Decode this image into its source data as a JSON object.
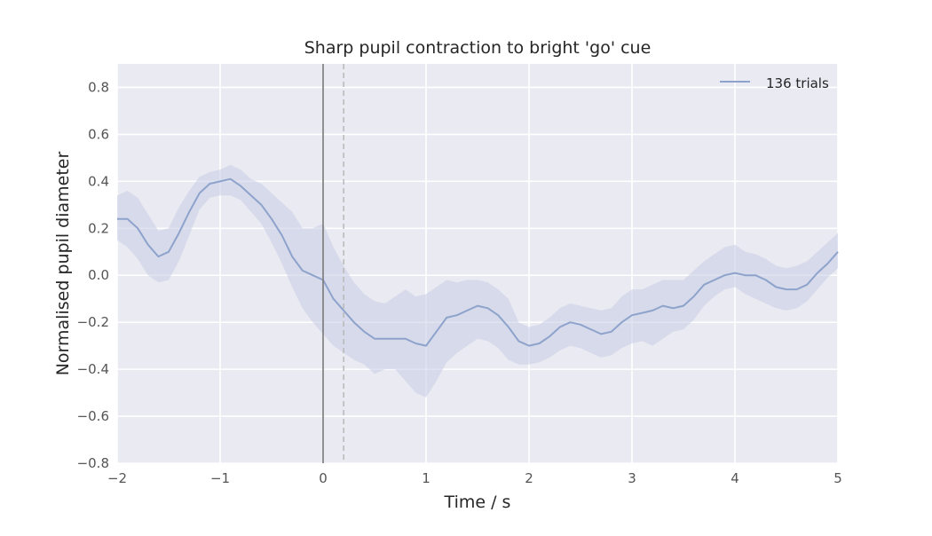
{
  "chart_data": {
    "type": "line",
    "title": "Sharp pupil contraction to bright 'go' cue",
    "xlabel": "Time / s",
    "ylabel": "Normalised pupil diameter",
    "xlim": [
      -2,
      5
    ],
    "ylim": [
      -0.8,
      0.9
    ],
    "xticks": [
      -2,
      -1,
      0,
      1,
      2,
      3,
      4,
      5
    ],
    "yticks": [
      -0.8,
      -0.6,
      -0.4,
      -0.2,
      0.0,
      0.2,
      0.4,
      0.6,
      0.8
    ],
    "xtick_labels": [
      "−2",
      "−1",
      "0",
      "1",
      "2",
      "3",
      "4",
      "5"
    ],
    "ytick_labels": [
      "−0.8",
      "−0.6",
      "−0.4",
      "−0.2",
      "0.0",
      "0.2",
      "0.4",
      "0.6",
      "0.8"
    ],
    "grid": true,
    "legend_position": "top-right",
    "vlines": [
      {
        "x": 0.0,
        "style": "solid",
        "color": "#777777"
      },
      {
        "x": 0.2,
        "style": "dashed",
        "color": "#bbbbbb"
      }
    ],
    "series": [
      {
        "name": "136 trials",
        "color": "#8ea3cc",
        "band_color": "#c6cce4",
        "x": [
          -2.0,
          -1.9,
          -1.8,
          -1.7,
          -1.6,
          -1.5,
          -1.4,
          -1.3,
          -1.2,
          -1.1,
          -1.0,
          -0.9,
          -0.8,
          -0.7,
          -0.6,
          -0.5,
          -0.4,
          -0.3,
          -0.2,
          -0.1,
          0.0,
          0.1,
          0.2,
          0.3,
          0.4,
          0.5,
          0.6,
          0.7,
          0.8,
          0.9,
          1.0,
          1.1,
          1.2,
          1.3,
          1.4,
          1.5,
          1.6,
          1.7,
          1.8,
          1.9,
          2.0,
          2.1,
          2.2,
          2.3,
          2.4,
          2.5,
          2.6,
          2.7,
          2.8,
          2.9,
          3.0,
          3.1,
          3.2,
          3.3,
          3.4,
          3.5,
          3.6,
          3.7,
          3.8,
          3.9,
          4.0,
          4.1,
          4.2,
          4.3,
          4.4,
          4.5,
          4.6,
          4.7,
          4.8,
          4.9,
          5.0
        ],
        "y": [
          0.24,
          0.24,
          0.2,
          0.13,
          0.08,
          0.1,
          0.18,
          0.27,
          0.35,
          0.39,
          0.4,
          0.41,
          0.38,
          0.34,
          0.3,
          0.24,
          0.17,
          0.08,
          0.02,
          0.0,
          -0.02,
          -0.1,
          -0.15,
          -0.2,
          -0.24,
          -0.27,
          -0.27,
          -0.27,
          -0.27,
          -0.29,
          -0.3,
          -0.24,
          -0.18,
          -0.17,
          -0.15,
          -0.13,
          -0.14,
          -0.17,
          -0.22,
          -0.28,
          -0.3,
          -0.29,
          -0.26,
          -0.22,
          -0.2,
          -0.21,
          -0.23,
          -0.25,
          -0.24,
          -0.2,
          -0.17,
          -0.16,
          -0.15,
          -0.13,
          -0.14,
          -0.13,
          -0.09,
          -0.04,
          -0.02,
          0.0,
          0.01,
          0.0,
          0.0,
          -0.02,
          -0.05,
          -0.06,
          -0.06,
          -0.04,
          0.01,
          0.05,
          0.1
        ],
        "lower": [
          0.15,
          0.12,
          0.07,
          0.0,
          -0.03,
          -0.02,
          0.06,
          0.17,
          0.28,
          0.33,
          0.34,
          0.34,
          0.32,
          0.27,
          0.22,
          0.14,
          0.05,
          -0.05,
          -0.14,
          -0.2,
          -0.25,
          -0.3,
          -0.33,
          -0.36,
          -0.38,
          -0.42,
          -0.4,
          -0.4,
          -0.45,
          -0.5,
          -0.52,
          -0.45,
          -0.37,
          -0.33,
          -0.3,
          -0.27,
          -0.28,
          -0.31,
          -0.36,
          -0.38,
          -0.38,
          -0.37,
          -0.35,
          -0.32,
          -0.3,
          -0.31,
          -0.33,
          -0.35,
          -0.34,
          -0.31,
          -0.29,
          -0.28,
          -0.3,
          -0.27,
          -0.24,
          -0.23,
          -0.19,
          -0.13,
          -0.09,
          -0.06,
          -0.05,
          -0.08,
          -0.1,
          -0.12,
          -0.14,
          -0.15,
          -0.14,
          -0.11,
          -0.06,
          -0.01,
          0.03
        ],
        "upper": [
          0.34,
          0.36,
          0.33,
          0.26,
          0.19,
          0.2,
          0.29,
          0.36,
          0.42,
          0.44,
          0.45,
          0.47,
          0.45,
          0.41,
          0.39,
          0.35,
          0.31,
          0.27,
          0.2,
          0.2,
          0.22,
          0.12,
          0.04,
          -0.03,
          -0.08,
          -0.11,
          -0.12,
          -0.09,
          -0.06,
          -0.09,
          -0.08,
          -0.05,
          -0.02,
          -0.03,
          -0.02,
          -0.02,
          -0.03,
          -0.06,
          -0.1,
          -0.2,
          -0.22,
          -0.21,
          -0.18,
          -0.14,
          -0.12,
          -0.13,
          -0.14,
          -0.15,
          -0.14,
          -0.09,
          -0.06,
          -0.06,
          -0.04,
          -0.02,
          -0.02,
          -0.02,
          0.02,
          0.06,
          0.09,
          0.12,
          0.13,
          0.1,
          0.09,
          0.07,
          0.04,
          0.03,
          0.04,
          0.06,
          0.1,
          0.14,
          0.18
        ]
      }
    ]
  }
}
